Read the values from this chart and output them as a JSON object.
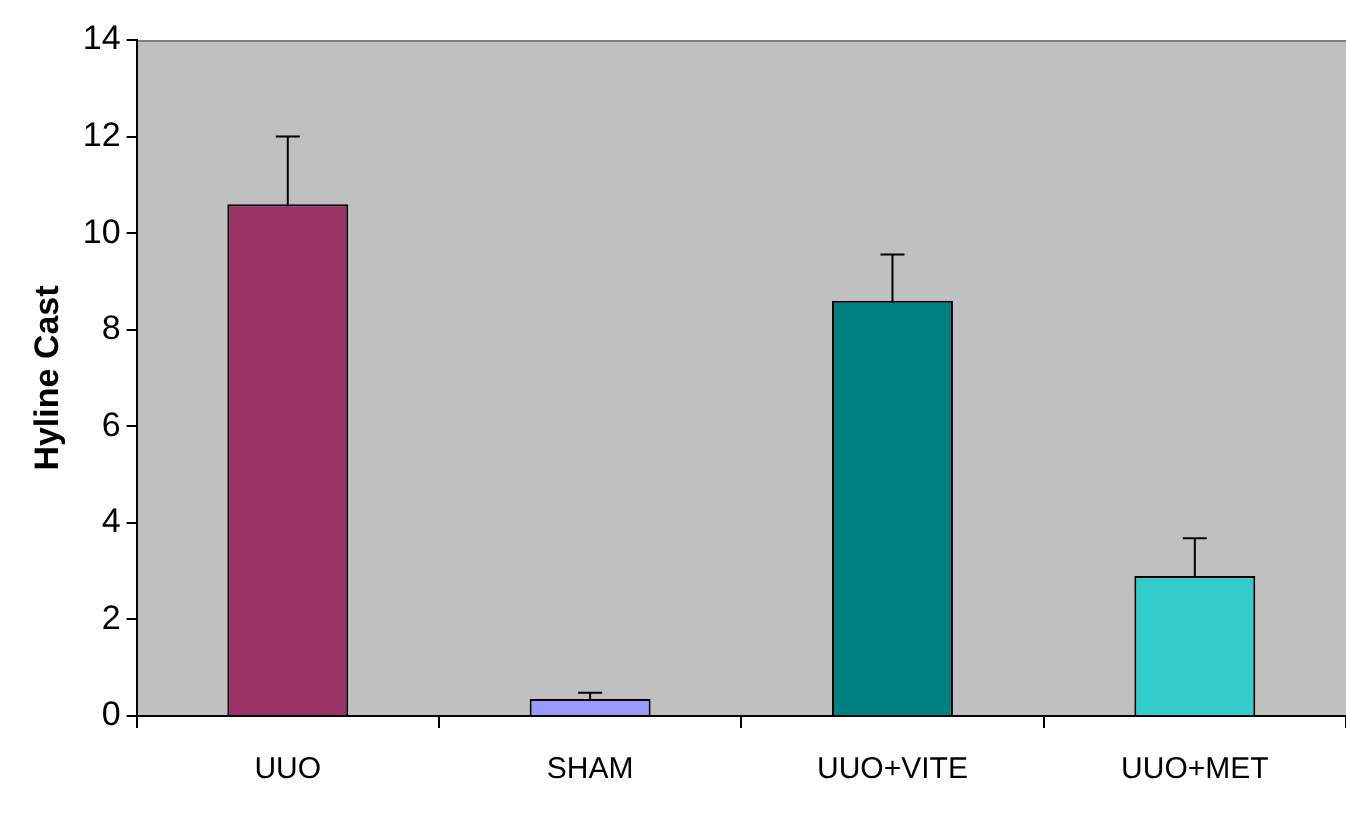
{
  "chart_data": {
    "type": "bar",
    "ylabel": "Hyline Cast",
    "categories": [
      "UUO",
      "SHAM",
      "UUO+VITE",
      "UUO+MET"
    ],
    "values": [
      10.6,
      0.35,
      8.6,
      2.9
    ],
    "colors": [
      "#993366",
      "#9999ff",
      "#008080",
      "#33cccc"
    ],
    "errors": [
      1.4,
      0.13,
      0.96,
      0.78
    ],
    "ylim": [
      0,
      14
    ],
    "yticks": [
      0,
      2,
      4,
      6,
      8,
      10,
      12,
      14
    ],
    "grid": false,
    "legend": false
  }
}
